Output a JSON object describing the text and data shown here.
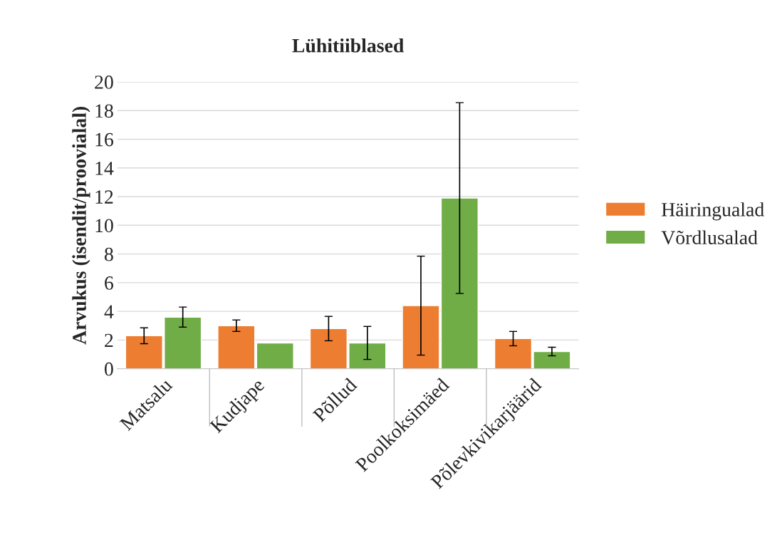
{
  "chart_data": {
    "type": "bar",
    "title": "Lühitiiblased",
    "ylabel": "Arvukus (isendit/proovialal)",
    "categories": [
      "Matsalu",
      "Kudjape",
      "Põllud",
      "Poolkoksimäed",
      "Põlevkivikarjäärid"
    ],
    "series": [
      {
        "name": "Häiringualad",
        "color": "#ed7d31",
        "values": [
          2.3,
          3.0,
          2.8,
          4.4,
          2.1
        ],
        "errors": [
          0.55,
          0.4,
          0.85,
          3.45,
          0.5
        ]
      },
      {
        "name": "Võrdlusalad",
        "color": "#70ad47",
        "values": [
          3.6,
          1.8,
          1.8,
          11.9,
          1.2
        ],
        "errors": [
          0.7,
          null,
          1.15,
          6.65,
          0.3
        ]
      }
    ],
    "ylim": [
      0,
      20
    ],
    "yticks": [
      0,
      2,
      4,
      6,
      8,
      10,
      12,
      14,
      16,
      18,
      20
    ],
    "grid": "y",
    "legend": "right"
  }
}
